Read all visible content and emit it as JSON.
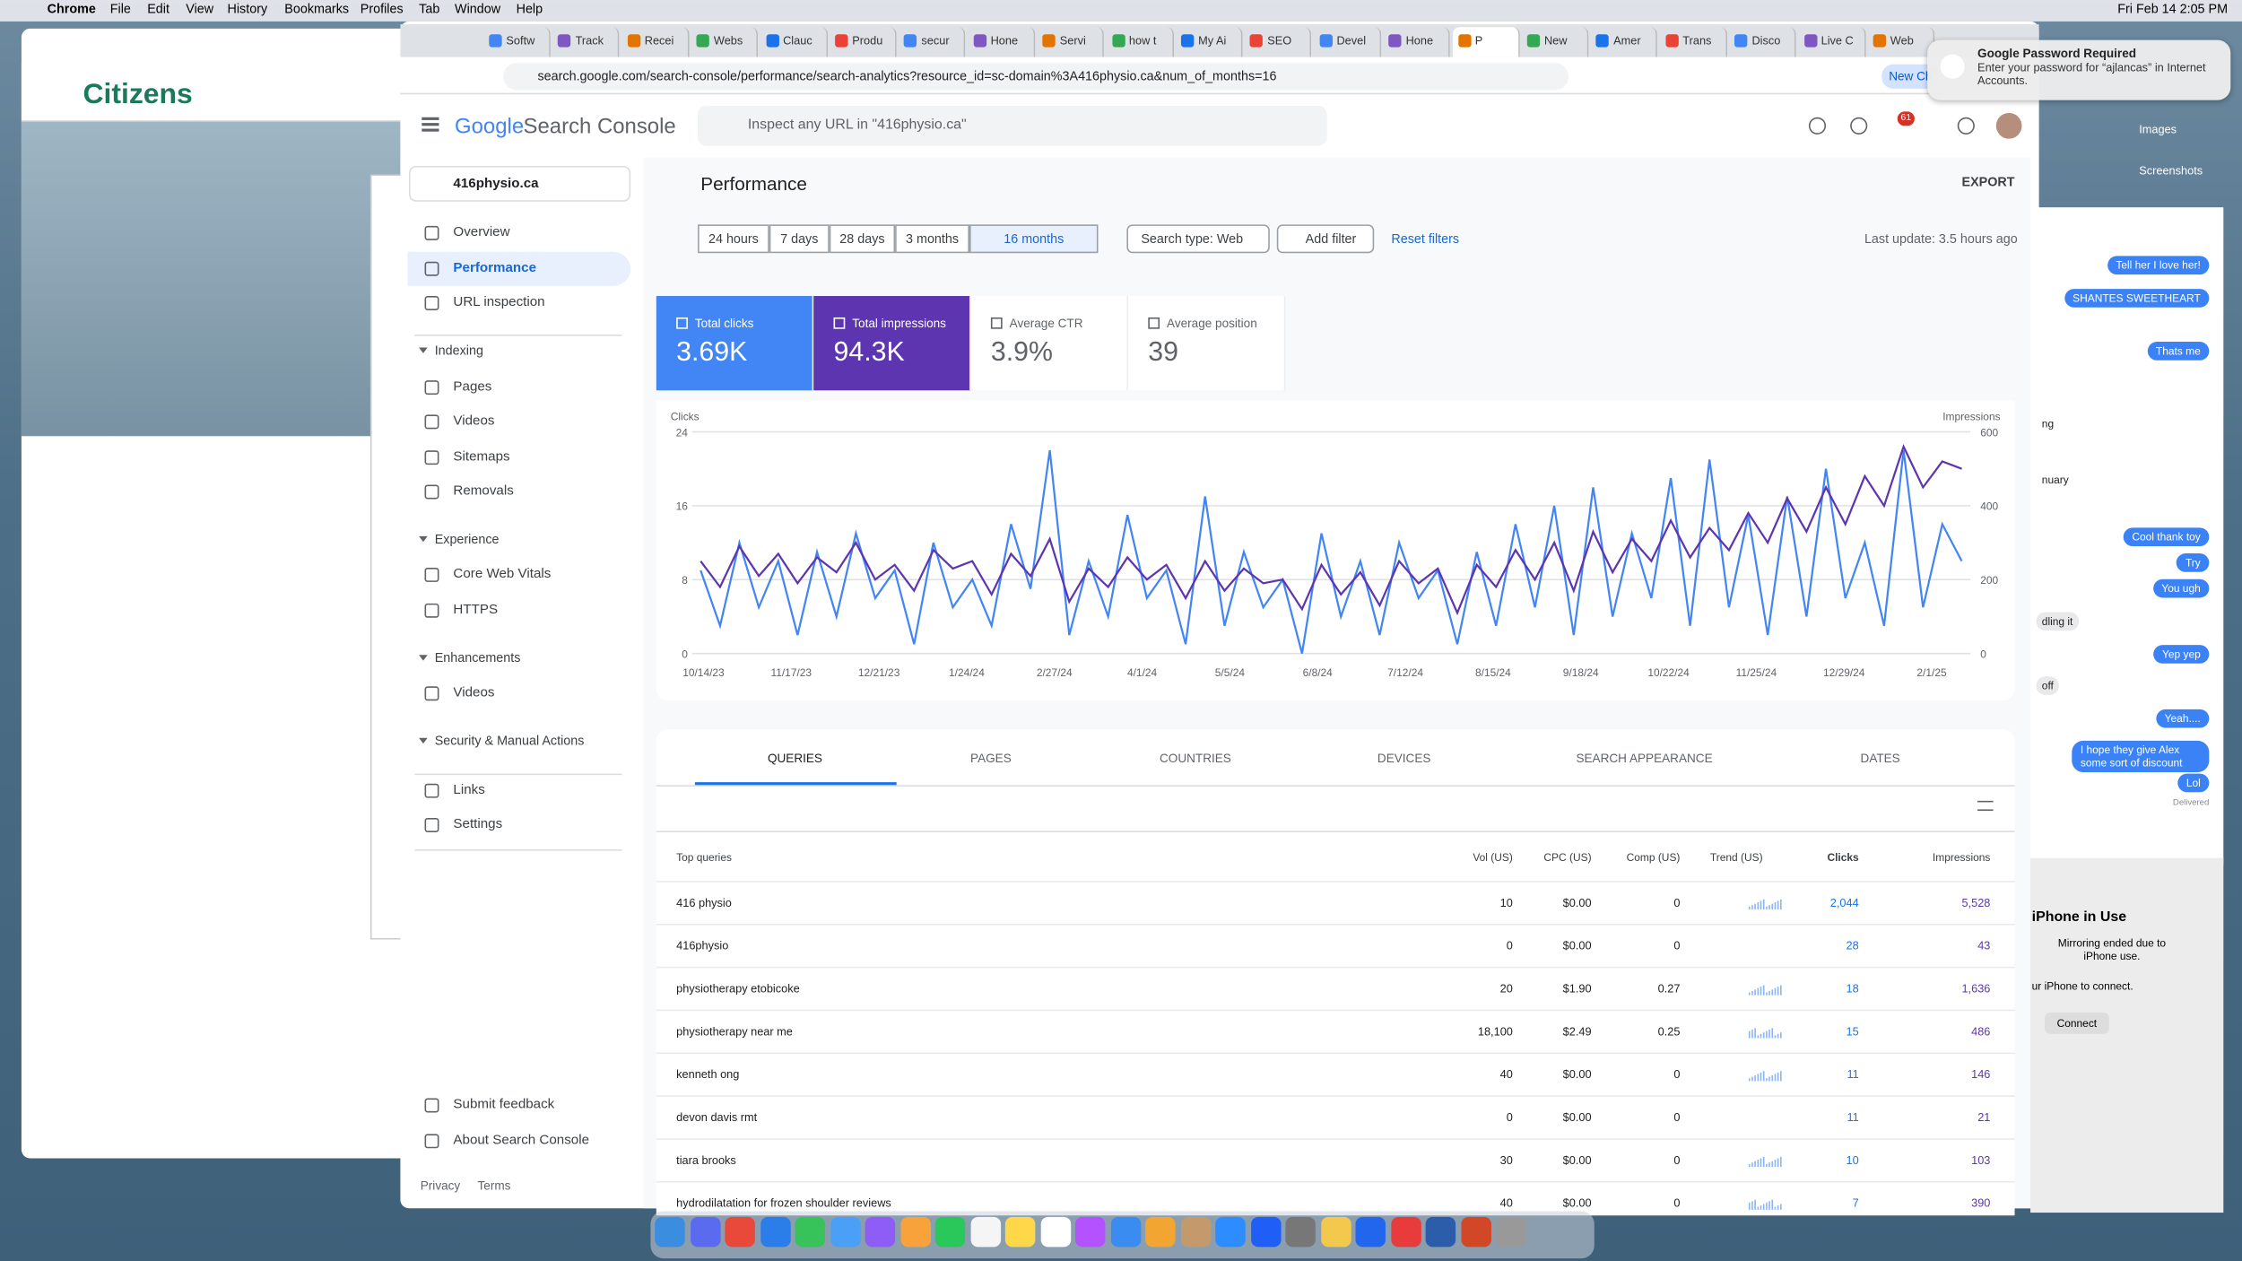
{
  "menubar": {
    "app": "Chrome",
    "items": [
      "File",
      "Edit",
      "View",
      "History",
      "Bookmarks",
      "Profiles",
      "Tab",
      "Window",
      "Help"
    ],
    "clock": "Fri Feb 14  2:05 PM"
  },
  "citizens": {
    "logo": "Citizens"
  },
  "browser": {
    "tabs": [
      "Softw",
      "Track",
      "Recei",
      "Webs",
      "Clauc",
      "Produ",
      "secur",
      "Hone",
      "Servi",
      "how t",
      "My Ai",
      "SEO",
      "Devel",
      "Hone",
      "P",
      "New",
      "Amer",
      "Trans",
      "Disco",
      "Live C",
      "Web"
    ],
    "url": "search.google.com/search-console/performance/search-analytics?resource_id=sc-domain%3A416physio.ca&num_of_months=16",
    "new_chrome": "New Ch"
  },
  "password_popup": {
    "title": "Google Password Required",
    "body": "Enter your password for “ajlancas” in Internet Accounts."
  },
  "header": {
    "logo": "Google",
    "product": "Search Console",
    "search_placeholder": "Inspect any URL in \"416physio.ca\"",
    "notifications": "61"
  },
  "sidebar": {
    "property": "416physio.ca",
    "nav": [
      "Overview",
      "Performance",
      "URL inspection",
      "Indexing",
      "Pages",
      "Videos",
      "Sitemaps",
      "Removals",
      "Experience",
      "Core Web Vitals",
      "HTTPS",
      "Enhancements",
      "Videos",
      "Security & Manual Actions",
      "Links",
      "Settings",
      "Submit feedback",
      "About Search Console"
    ],
    "footer": [
      "Privacy",
      "Terms"
    ]
  },
  "main": {
    "title": "Performance",
    "export": "EXPORT",
    "ranges": [
      "24 hours",
      "7 days",
      "28 days",
      "3 months",
      "16 months"
    ],
    "search_type": "Search type: Web",
    "add_filter": "Add filter",
    "reset": "Reset filters",
    "last_update": "Last update: 3.5 hours ago",
    "metrics": [
      {
        "label": "Total clicks",
        "value": "3.69K"
      },
      {
        "label": "Total impressions",
        "value": "94.3K"
      },
      {
        "label": "Average CTR",
        "value": "3.9%"
      },
      {
        "label": "Average position",
        "value": "39"
      }
    ]
  },
  "chart_data": {
    "type": "line",
    "y_label": "Clicks",
    "y2_label": "Impressions",
    "ylim": [
      0,
      24
    ],
    "yticks": [
      0,
      8,
      16,
      24
    ],
    "y2lim": [
      0,
      600
    ],
    "y2ticks": [
      0,
      200,
      400,
      600
    ],
    "grid": true,
    "categories_ticks": [
      "10/14/23",
      "11/17/23",
      "12/21/23",
      "1/24/24",
      "2/27/24",
      "4/1/24",
      "5/5/24",
      "6/8/24",
      "7/12/24",
      "8/15/24",
      "9/18/24",
      "10/22/24",
      "11/25/24",
      "12/29/24",
      "2/1/25"
    ],
    "series": [
      {
        "name": "Clicks",
        "color": "#4285f4",
        "values": [
          9,
          3,
          12,
          5,
          10,
          2,
          11,
          4,
          13,
          6,
          9,
          1,
          12,
          5,
          8,
          3,
          14,
          7,
          22,
          2,
          10,
          4,
          15,
          6,
          9,
          1,
          17,
          3,
          11,
          5,
          8,
          0,
          13,
          4,
          10,
          2,
          12,
          6,
          9,
          1,
          11,
          3,
          14,
          5,
          16,
          2,
          18,
          4,
          13,
          6,
          19,
          3,
          21,
          5,
          15,
          2,
          17,
          4,
          20,
          6,
          12,
          3,
          22,
          5,
          14,
          10
        ]
      },
      {
        "name": "Impressions",
        "color": "#5e35b1",
        "axis": "y2",
        "values": [
          250,
          180,
          290,
          210,
          270,
          190,
          260,
          220,
          300,
          200,
          240,
          170,
          280,
          230,
          250,
          160,
          270,
          210,
          310,
          140,
          230,
          180,
          260,
          200,
          240,
          150,
          250,
          170,
          230,
          190,
          200,
          120,
          240,
          160,
          220,
          130,
          250,
          190,
          230,
          110,
          240,
          180,
          280,
          200,
          300,
          170,
          330,
          220,
          310,
          250,
          360,
          260,
          340,
          280,
          380,
          300,
          420,
          330,
          450,
          350,
          480,
          400,
          560,
          450,
          520,
          500
        ]
      }
    ]
  },
  "table": {
    "tabs": [
      "QUERIES",
      "PAGES",
      "COUNTRIES",
      "DEVICES",
      "SEARCH APPEARANCE",
      "DATES"
    ],
    "headers": [
      "Top queries",
      "Vol (US)",
      "CPC (US)",
      "Comp (US)",
      "Trend (US)",
      "Clicks",
      "Impressions"
    ],
    "rows": [
      [
        "416 physio",
        "10",
        "$0.00",
        "0",
        "2,044",
        "5,528"
      ],
      [
        "416physio",
        "0",
        "$0.00",
        "0",
        "28",
        "43"
      ],
      [
        "physiotherapy etobicoke",
        "20",
        "$1.90",
        "0.27",
        "18",
        "1,636"
      ],
      [
        "physiotherapy near me",
        "18,100",
        "$2.49",
        "0.25",
        "15",
        "486"
      ],
      [
        "kenneth ong",
        "40",
        "$0.00",
        "0",
        "11",
        "146"
      ],
      [
        "devon davis rmt",
        "0",
        "$0.00",
        "0",
        "11",
        "21"
      ],
      [
        "tiara brooks",
        "30",
        "$0.00",
        "0",
        "10",
        "103"
      ],
      [
        "hydrodilatation for frozen shoulder reviews",
        "40",
        "$0.00",
        "0",
        "7",
        "390"
      ]
    ]
  },
  "messages": {
    "sent": [
      "Tell her I love her!",
      "SHANTES SWEETHEART",
      "Thats me",
      "Cool thank toy",
      "Try",
      "You ugh",
      "Yep yep",
      "Yeah....",
      "I hope they give Alex some sort of discount",
      "Lol"
    ],
    "status": "Delivered",
    "received": [
      "ng",
      "nuary",
      "dling it",
      "off"
    ]
  },
  "finder": [
    "Images",
    "Screenshots"
  ],
  "iphone": {
    "title": "iPhone in Use",
    "body": "Mirroring ended due to iPhone use.",
    "hint": "ur iPhone to connect.",
    "button": "Connect"
  }
}
